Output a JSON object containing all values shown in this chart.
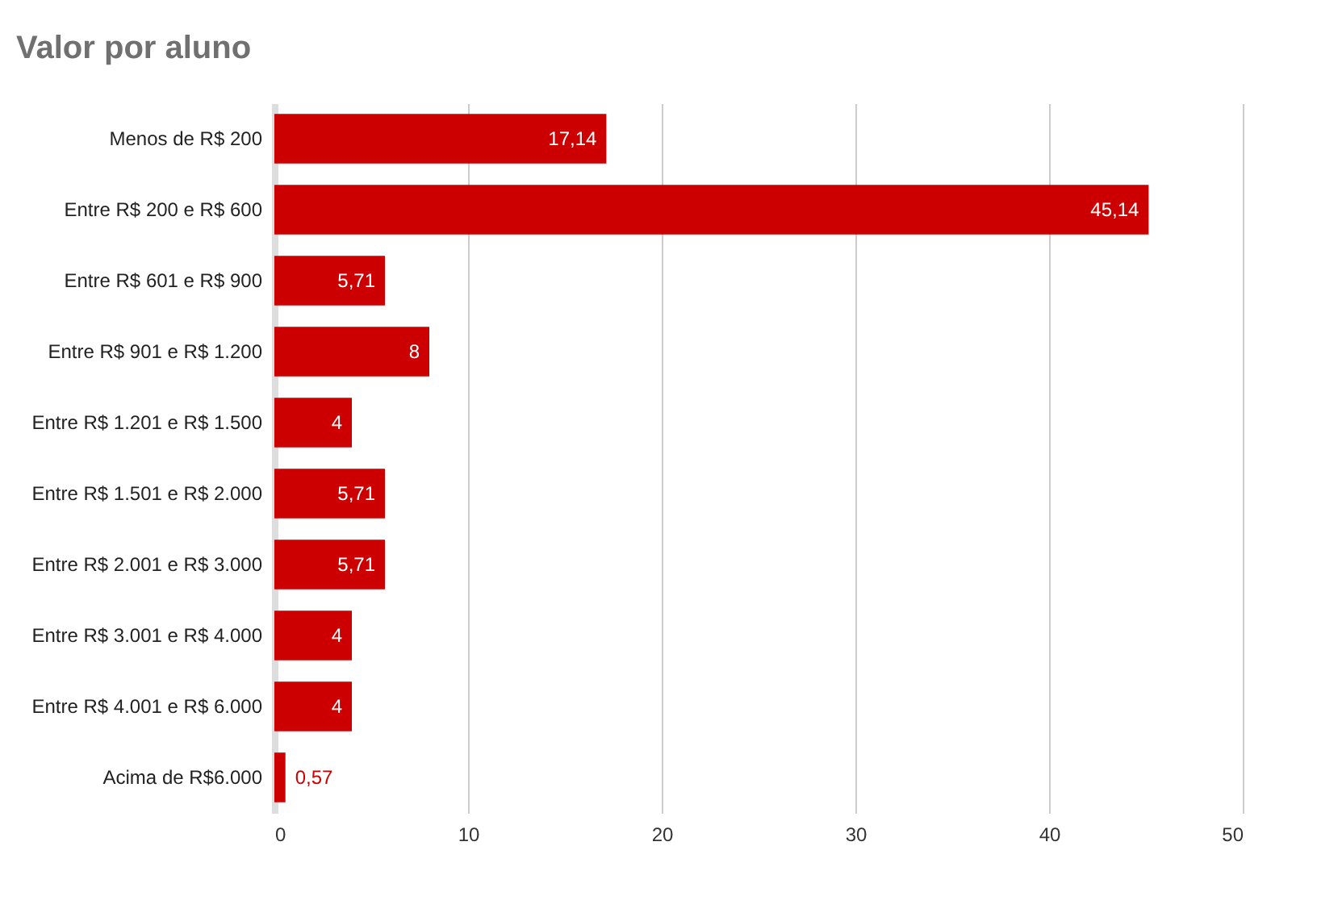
{
  "chart_data": {
    "type": "bar",
    "orientation": "horizontal",
    "title": "Valor por aluno",
    "categories": [
      "Menos de R$ 200",
      "Entre R$ 200 e R$ 600",
      "Entre R$ 601 e R$ 900",
      "Entre R$ 901 e R$ 1.200",
      "Entre R$ 1.201 e R$ 1.500",
      "Entre R$ 1.501 e R$ 2.000",
      "Entre R$ 2.001 e R$ 3.000",
      "Entre R$ 3.001 e R$ 4.000",
      "Entre R$ 4.001 e R$ 6.000",
      "Acima de R$6.000"
    ],
    "values": [
      17.14,
      45.14,
      5.71,
      8,
      4,
      5.71,
      5.71,
      4,
      4,
      0.57
    ],
    "value_labels": [
      "17,14",
      "45,14",
      "5,71",
      "8",
      "4",
      "5,71",
      "5,71",
      "4",
      "4",
      "0,57"
    ],
    "color": "#cc0000",
    "xlim": [
      0,
      50
    ],
    "xticks": [
      0,
      10,
      20,
      30,
      40,
      50
    ],
    "grid": "x"
  }
}
